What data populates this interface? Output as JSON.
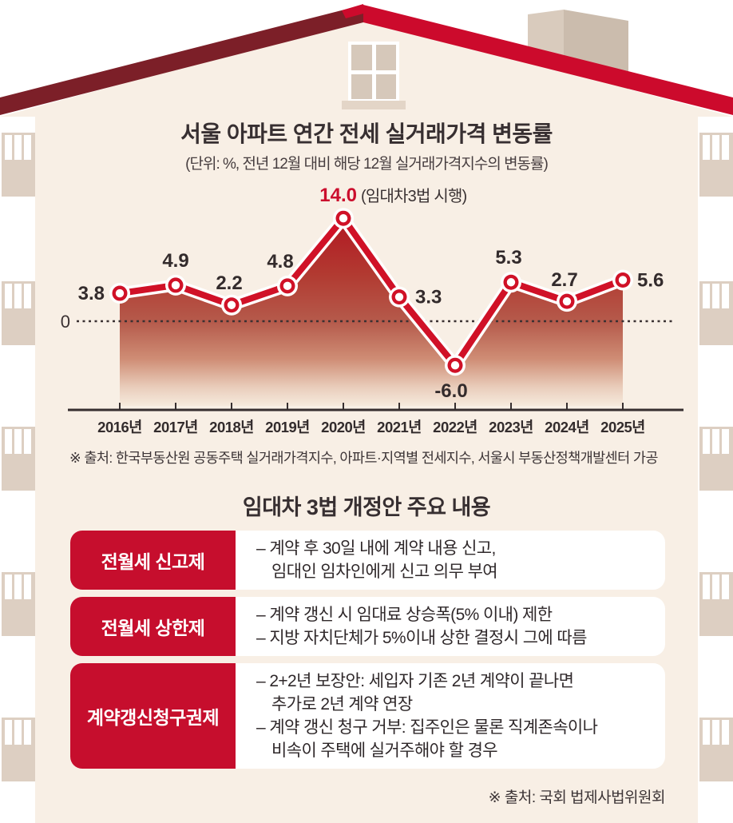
{
  "colors": {
    "background": "#ffffff",
    "house_cream": "#f8efe5",
    "building_beige": "#ddcfc2",
    "roof_bright_red": "#cc0a2c",
    "roof_dark_red": "#7c1f28",
    "line_red": "#d01127",
    "table_label_red": "#c60e2d",
    "value_label_red": "#cb0e2d",
    "text_dark": "#332b2c"
  },
  "chart": {
    "title": "서울 아파트 연간 전세 실거래가격 변동률",
    "subtitle": "(단위: %, 전년 12월 대비 해당 12월 실거래가격지수의 변동률)",
    "zero_label": "0",
    "source": "※ 출처: 한국부동산원 공동주택 실거래가격지수, 아파트·지역별 전세지수, 서울시 부동산정책개발센터 가공"
  },
  "chart_data": {
    "type": "line",
    "title": "서울 아파트 연간 전세 실거래가격 변동률",
    "subtitle": "(단위: %, 전년 12월 대비 해당 12월 실거래가격지수의 변동률)",
    "unit": "%",
    "categories": [
      "2016년",
      "2017년",
      "2018년",
      "2019년",
      "2020년",
      "2021년",
      "2022년",
      "2023년",
      "2024년",
      "2025년"
    ],
    "values": [
      3.8,
      4.9,
      2.2,
      4.8,
      14.0,
      3.3,
      -6.0,
      5.3,
      2.7,
      5.6
    ],
    "annotations": [
      {
        "category": "2020년",
        "value": 14.0,
        "text": "(임대차3법 시행)"
      }
    ],
    "ylim": [
      -8,
      16
    ],
    "zero_line": "dotted",
    "legend": "none",
    "line_color": "#d01127",
    "area_fill": "vertical gradient dark red to cream"
  },
  "table": {
    "title": "임대차 3법 개정안 주요 내용",
    "rows": [
      {
        "label": "전월세 신고제",
        "lines": [
          "– 계약 후 30일 내에 계약 내용 신고,",
          "임대인 임차인에게 신고 의무 부여"
        ]
      },
      {
        "label": "전월세 상한제",
        "lines": [
          "– 계약 갱신 시 임대료 상승폭(5% 이내) 제한",
          "– 지방 자치단체가 5%이내 상한 결정시 그에 따름"
        ]
      },
      {
        "label": "계약갱신청구권제",
        "lines": [
          "– 2+2년 보장안: 세입자 기존 2년 계약이 끝나면",
          "추가로 2년 계약 연장",
          "– 계약 갱신 청구 거부: 집주인은 물론 직계존속이나",
          "비속이 주택에 실거주해야 할 경우"
        ]
      }
    ],
    "source": "※ 출처: 국회 법제사법위원회"
  }
}
